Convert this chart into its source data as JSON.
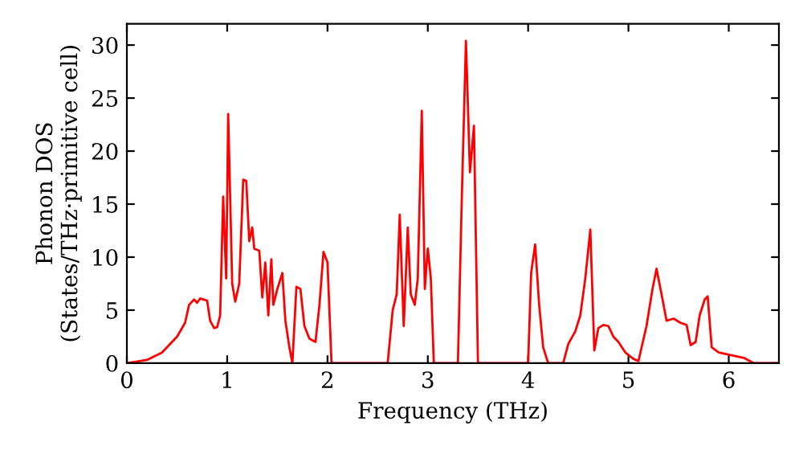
{
  "chart_data": {
    "type": "line",
    "xlabel": "Frequency (THz)",
    "ylabel": "Phonon DOS\n(States/THz·primitive cell)",
    "xlim": [
      0,
      6.5
    ],
    "ylim": [
      0,
      32
    ],
    "xticks": [
      0,
      1,
      2,
      3,
      4,
      5,
      6
    ],
    "yticks": [
      0,
      5,
      10,
      15,
      20,
      25,
      30
    ],
    "grid": false,
    "legend": false,
    "marker": "none",
    "line_style": "solid",
    "series": [
      {
        "color": "#ff0000",
        "x": [
          0,
          0.2,
          0.35,
          0.5,
          0.58,
          0.62,
          0.67,
          0.7,
          0.73,
          0.8,
          0.83,
          0.87,
          0.9,
          0.93,
          0.96,
          0.99,
          1.01,
          1.05,
          1.08,
          1.12,
          1.16,
          1.19,
          1.22,
          1.25,
          1.27,
          1.32,
          1.35,
          1.38,
          1.41,
          1.44,
          1.46,
          1.5,
          1.55,
          1.58,
          1.62,
          1.65,
          1.69,
          1.73,
          1.77,
          1.82,
          1.88,
          1.92,
          1.96,
          2.0,
          2.04,
          2.6,
          2.65,
          2.69,
          2.72,
          2.76,
          2.8,
          2.83,
          2.87,
          2.9,
          2.94,
          2.97,
          3.0,
          3.03,
          3.06,
          3.3,
          3.34,
          3.38,
          3.42,
          3.46,
          3.5,
          4.0,
          4.03,
          4.07,
          4.11,
          4.15,
          4.2,
          4.35,
          4.4,
          4.47,
          4.52,
          4.57,
          4.62,
          4.66,
          4.7,
          4.75,
          4.8,
          4.85,
          4.9,
          4.97,
          5.05,
          5.1,
          5.18,
          5.24,
          5.28,
          5.33,
          5.38,
          5.45,
          5.52,
          5.58,
          5.62,
          5.67,
          5.71,
          5.76,
          5.79,
          5.83,
          5.9,
          6.0,
          6.15,
          6.25,
          6.5
        ],
        "values": [
          0,
          0.3,
          1,
          2.5,
          3.8,
          5.5,
          6,
          5.7,
          6.1,
          5.9,
          4,
          3.3,
          3.4,
          4.5,
          15.7,
          8,
          23.5,
          7.5,
          5.8,
          7.5,
          17.3,
          17.2,
          11.5,
          12.8,
          10.8,
          10.6,
          6.2,
          9.5,
          4.5,
          9.8,
          5.5,
          7,
          8.5,
          4,
          1.5,
          0,
          7.2,
          7,
          3.5,
          2.3,
          2,
          5.5,
          10.5,
          9.5,
          0,
          0,
          5,
          6.5,
          14,
          3.5,
          12.8,
          6.5,
          5.5,
          8,
          23.8,
          7,
          10.8,
          8,
          0,
          0,
          16,
          30.4,
          18,
          22.4,
          0,
          0,
          8.5,
          11.2,
          5.5,
          1.5,
          0,
          0,
          1.8,
          3,
          4.5,
          8,
          12.6,
          1.2,
          3.3,
          3.6,
          3.5,
          2.5,
          2,
          1,
          0.4,
          0.2,
          3.5,
          7,
          8.9,
          6.5,
          4,
          4.2,
          3.8,
          3.6,
          1.7,
          2,
          4.5,
          6,
          6.3,
          1.5,
          1,
          0.8,
          0.5,
          0,
          0
        ]
      }
    ]
  }
}
